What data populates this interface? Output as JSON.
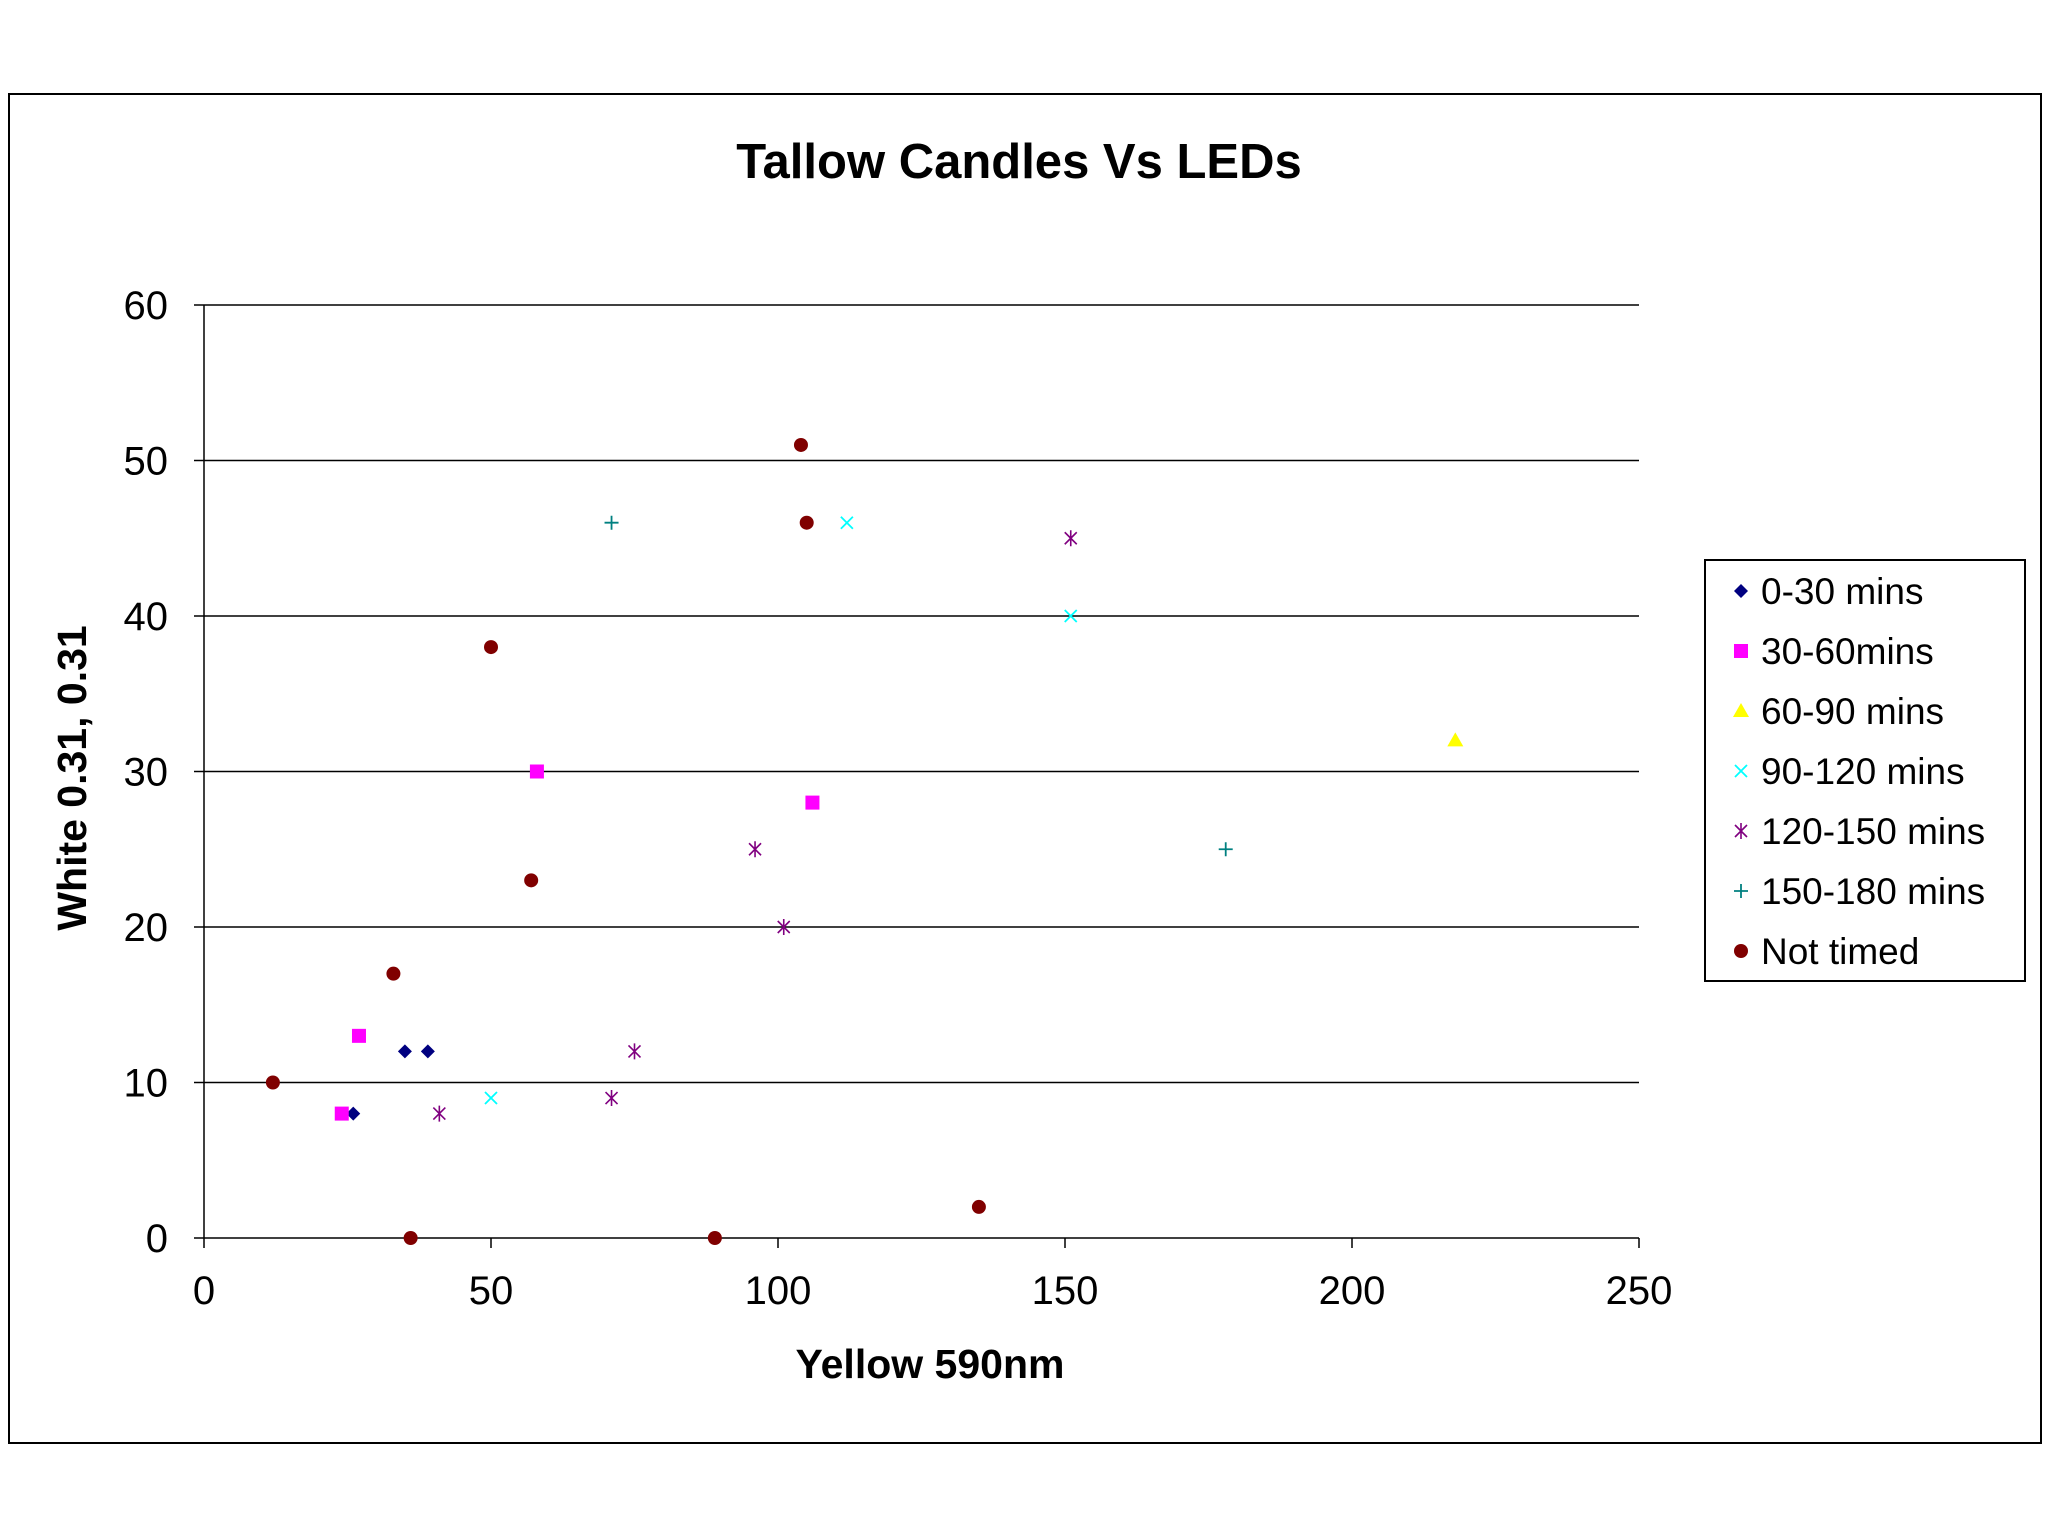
{
  "chart_data": {
    "type": "scatter",
    "title": "Tallow Candles Vs LEDs",
    "xlabel": "Yellow 590nm",
    "ylabel": "White 0.31, 0.31",
    "xlim": [
      0,
      250
    ],
    "ylim": [
      0,
      60
    ],
    "xticks": [
      0,
      50,
      100,
      150,
      200,
      250
    ],
    "yticks": [
      0,
      10,
      20,
      30,
      40,
      50,
      60
    ],
    "grid": "horizontal major gridlines",
    "legend_position": "right",
    "series": [
      {
        "name": "0-30 mins",
        "marker": "diamond",
        "color": "#000080",
        "points": [
          [
            26,
            8
          ],
          [
            35,
            12
          ],
          [
            39,
            12
          ]
        ]
      },
      {
        "name": "30-60mins",
        "marker": "square",
        "color": "#ff00ff",
        "points": [
          [
            24,
            8
          ],
          [
            27,
            13
          ],
          [
            58,
            30
          ],
          [
            106,
            28
          ]
        ]
      },
      {
        "name": "60-90 mins",
        "marker": "triangle",
        "color": "#ffff00",
        "points": [
          [
            218,
            32
          ]
        ]
      },
      {
        "name": "90-120 mins",
        "marker": "x",
        "color": "#00ffff",
        "points": [
          [
            50,
            9
          ],
          [
            112,
            46
          ],
          [
            151,
            40
          ]
        ]
      },
      {
        "name": "120-150 mins",
        "marker": "star",
        "color": "#800080",
        "points": [
          [
            41,
            8
          ],
          [
            71,
            9
          ],
          [
            75,
            12
          ],
          [
            96,
            25
          ],
          [
            101,
            20
          ],
          [
            151,
            45
          ]
        ]
      },
      {
        "name": "150-180 mins",
        "marker": "plus",
        "color": "#008080",
        "points": [
          [
            71,
            46
          ],
          [
            178,
            25
          ]
        ]
      },
      {
        "name": "Not timed",
        "marker": "circle",
        "color": "#800000",
        "points": [
          [
            12,
            10
          ],
          [
            33,
            17
          ],
          [
            36,
            0
          ],
          [
            50,
            38
          ],
          [
            57,
            23
          ],
          [
            89,
            0
          ],
          [
            104,
            51
          ],
          [
            105,
            46
          ],
          [
            135,
            2
          ]
        ]
      }
    ]
  }
}
